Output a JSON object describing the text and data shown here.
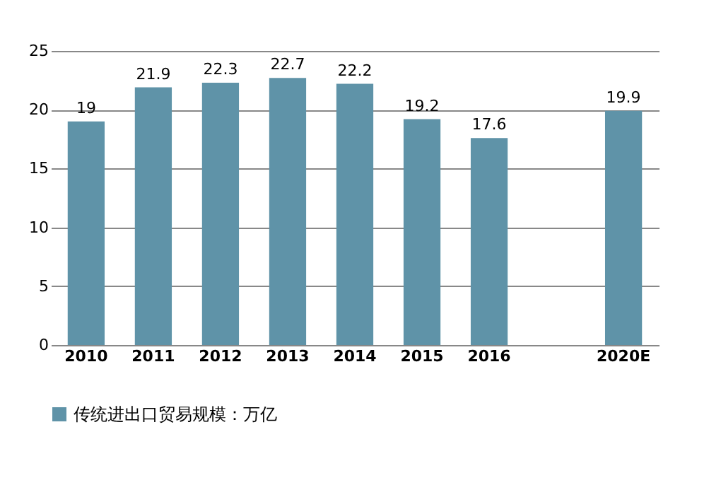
{
  "chart_data": {
    "type": "bar",
    "categories": [
      "2010",
      "2011",
      "2012",
      "2013",
      "2014",
      "2015",
      "2016",
      null,
      "2020E"
    ],
    "series": [
      {
        "name": "传统进出口贸易规模：万亿",
        "color": "#5f93a8",
        "values": [
          19,
          21.9,
          22.3,
          22.7,
          22.2,
          19.2,
          17.6,
          null,
          19.9
        ]
      }
    ],
    "ylim": [
      0,
      25
    ],
    "yticks": [
      0,
      5,
      10,
      15,
      20,
      25
    ],
    "grid": "y",
    "legend": "bottom",
    "data_labels": true
  }
}
